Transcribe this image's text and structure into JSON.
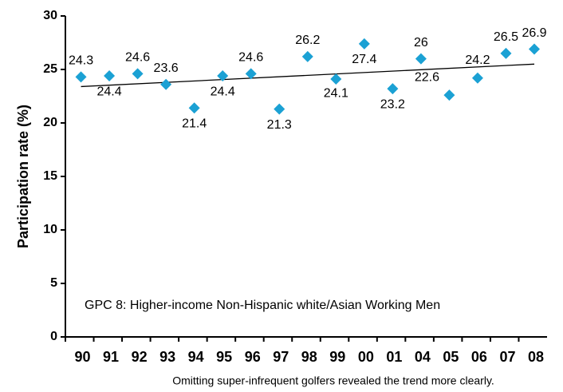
{
  "chart_data": {
    "type": "scatter",
    "y_label": "Participation rate (%)",
    "annotation": "GPC 8: Higher-income Non-Hispanic white/Asian Working Men",
    "footnote": "Omitting super-infrequent golfers revealed the trend more clearly.",
    "categories": [
      "90",
      "91",
      "92",
      "93",
      "94",
      "95",
      "96",
      "97",
      "98",
      "99",
      "00",
      "01",
      "04",
      "05",
      "06",
      "07",
      "08"
    ],
    "series": [
      {
        "color": "#1ba1d4",
        "values": [
          24.3,
          24.4,
          24.6,
          23.6,
          21.4,
          24.4,
          24.6,
          21.3,
          26.2,
          24.1,
          27.4,
          23.2,
          26.0,
          22.6,
          24.2,
          26.5,
          26.9
        ]
      }
    ],
    "trendline": {
      "color": "#000000",
      "values": [
        23.4,
        25.5
      ]
    },
    "ylim": [
      0,
      30
    ],
    "yticks": [
      0,
      5,
      10,
      15,
      20,
      25,
      30
    ]
  }
}
